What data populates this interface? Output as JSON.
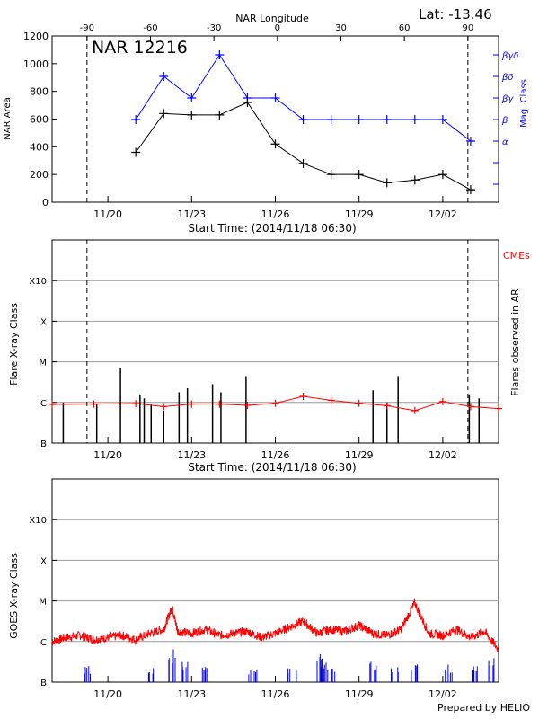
{
  "panel1": {
    "title": "NAR 12216",
    "lat_label": "Lat: -13.46",
    "top_axis_label": "NAR Longitude",
    "ylabel": "NAR Area",
    "ylabel_right": "Mag. Class",
    "xlabel": "Start Time: (2014/11/18 06:30)"
  },
  "panel2": {
    "ylabel": "Flare X-ray Class",
    "ylabel_right": "Flares observed in AR",
    "cme_label": "CMEs",
    "xlabel": "Start Time: (2014/11/18 06:30)"
  },
  "panel3": {
    "ylabel": "GOES X-ray Class"
  },
  "footer": "Prepared by HELIO",
  "colors": {
    "black": "#000000",
    "blue": "#0000ff",
    "red": "#ff0000",
    "grid": "#999999"
  },
  "chart_data": [
    {
      "type": "line",
      "title": "NAR 12216",
      "ylabel": "NAR Area",
      "ylim": [
        0,
        1200
      ],
      "y_ticks": [
        "0",
        "200",
        "400",
        "600",
        "800",
        "1000",
        "1200"
      ],
      "x_ticks": [
        "11/20",
        "11/23",
        "11/26",
        "11/29",
        "12/02"
      ],
      "x_tick_days": [
        2,
        5,
        8,
        11,
        14
      ],
      "top_axis": {
        "label": "NAR Longitude",
        "ticks": [
          "-90",
          "-60",
          "-30",
          "0",
          "30",
          "60",
          "90"
        ]
      },
      "right_axis": {
        "label": "Mag. Class",
        "ticks": [
          "α",
          "β",
          "βγ",
          "βδ",
          "βγδ"
        ]
      },
      "vlines_day": [
        1.25,
        14.9
      ],
      "series": [
        {
          "name": "NAR Area",
          "color": "#000000",
          "x_day": [
            3,
            4,
            5,
            6,
            7,
            8,
            9,
            10,
            11,
            12,
            13,
            14,
            15
          ],
          "values": [
            360,
            640,
            630,
            630,
            720,
            420,
            280,
            200,
            200,
            140,
            160,
            200,
            90
          ]
        },
        {
          "name": "Mag. Class",
          "color": "#0000ff",
          "x_day": [
            3,
            4,
            5,
            6,
            7,
            8,
            9,
            10,
            11,
            12,
            13,
            14,
            15
          ],
          "values": [
            "β",
            "βδ",
            "βγ",
            "βγδ",
            "βγ",
            "βγ",
            "β",
            "β",
            "β",
            "β",
            "β",
            "β",
            "α"
          ]
        }
      ]
    },
    {
      "type": "bar",
      "ylabel": "Flare X-ray Class",
      "y_ticks": [
        "B",
        "C",
        "M",
        "X",
        "X10"
      ],
      "x_ticks": [
        "11/20",
        "11/23",
        "11/26",
        "11/29",
        "12/02"
      ],
      "grid": true,
      "vlines_day": [
        1.25,
        14.9
      ],
      "flares": {
        "name": "Flares observed in AR",
        "color": "#000000",
        "x_day": [
          0.4,
          1.6,
          2.45,
          3.15,
          3.3,
          3.55,
          4.0,
          4.55,
          4.85,
          5.75,
          6.05,
          6.95,
          11.5,
          12.0,
          12.4,
          14.95,
          15.3
        ],
        "level": [
          1.0,
          0.95,
          1.85,
          1.2,
          1.1,
          0.95,
          0.8,
          1.25,
          1.35,
          1.45,
          1.25,
          1.65,
          1.3,
          1.0,
          1.65,
          1.2,
          1.1
        ]
      },
      "cmes": {
        "name": "CMEs",
        "color": "#ff0000",
        "x_day": [
          0.0,
          1.5,
          3.0,
          4.0,
          5.0,
          6.0,
          7.0,
          8.0,
          9.0,
          10.0,
          11.0,
          12.0,
          13.0,
          14.0,
          15.0,
          16.0
        ],
        "level": [
          0.95,
          0.96,
          0.97,
          0.9,
          0.96,
          0.96,
          0.93,
          0.98,
          1.15,
          1.05,
          0.98,
          0.92,
          0.8,
          1.02,
          0.9,
          0.85
        ]
      }
    },
    {
      "type": "line",
      "ylabel": "GOES X-ray Class",
      "y_ticks": [
        "B",
        "C",
        "M",
        "X",
        "X10"
      ],
      "x_ticks": [
        "11/20",
        "11/23",
        "11/26",
        "11/29",
        "12/02"
      ],
      "grid": true,
      "series": [
        {
          "name": "GOES long channel",
          "color": "#ff0000",
          "x_day": [
            0.0,
            0.5,
            1.0,
            1.5,
            2.0,
            2.5,
            3.0,
            3.5,
            4.0,
            4.3,
            4.5,
            5.0,
            5.5,
            6.0,
            6.5,
            7.0,
            7.5,
            8.0,
            8.5,
            9.0,
            9.5,
            10.0,
            10.5,
            11.0,
            11.5,
            12.0,
            12.5,
            13.0,
            13.5,
            14.0,
            14.5,
            15.0,
            15.5,
            16.0
          ],
          "values": [
            0.0,
            0.1,
            0.15,
            0.05,
            0.1,
            0.15,
            0.05,
            0.2,
            0.3,
            0.85,
            0.25,
            0.2,
            0.3,
            0.15,
            0.2,
            0.25,
            0.1,
            0.2,
            0.35,
            0.5,
            0.2,
            0.3,
            0.25,
            0.4,
            0.2,
            0.15,
            0.3,
            0.95,
            0.2,
            0.15,
            0.3,
            0.1,
            0.25,
            -0.2
          ]
        },
        {
          "name": "GOES short channel",
          "color": "#0000ff",
          "x_day": [
            1.3,
            3.6,
            4.3,
            4.7,
            5.5,
            7.2,
            8.6,
            9.5,
            9.7,
            10.0,
            11.5,
            12.3,
            13.0,
            14.2,
            15.2,
            15.7
          ],
          "values": [
            -0.6,
            -0.65,
            -0.15,
            -0.5,
            -0.6,
            -0.7,
            -0.65,
            -0.25,
            -0.4,
            -0.55,
            -0.5,
            -0.6,
            -0.5,
            -0.55,
            -0.6,
            -0.4
          ]
        }
      ]
    }
  ]
}
